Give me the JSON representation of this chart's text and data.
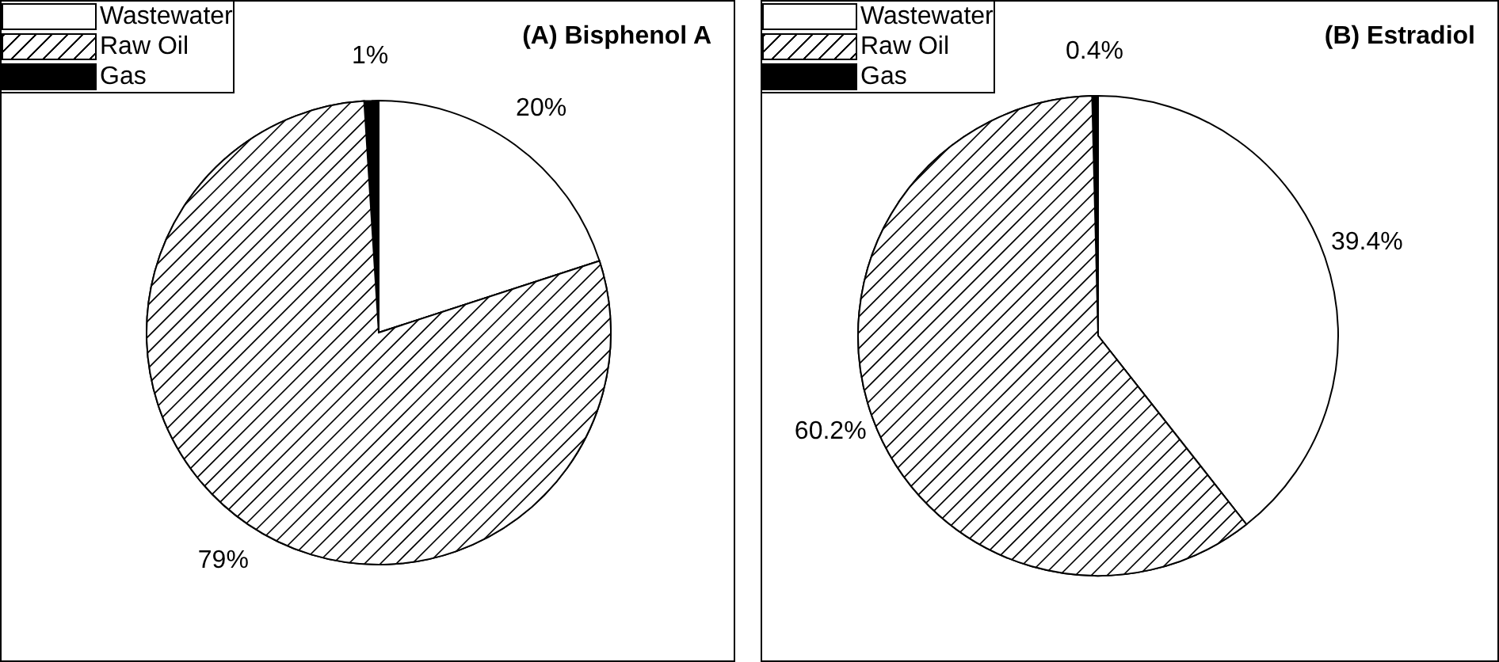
{
  "chart_data": [
    {
      "type": "pie",
      "title": "(A) Bisphenol A",
      "legend": "top left",
      "categories": [
        "Wastewater",
        "Raw Oil",
        "Gas"
      ],
      "values": [
        20,
        79,
        1
      ],
      "value_labels": [
        "20%",
        "79%",
        "1%"
      ],
      "colors": [
        "#ffffff",
        "#d0d0d0",
        "#000000"
      ]
    },
    {
      "type": "pie",
      "title": "(B) Estradiol",
      "legend": "top left",
      "categories": [
        "Wastewater",
        "Raw Oil",
        "Gas"
      ],
      "values": [
        39.4,
        60.2,
        0.4
      ],
      "value_labels": [
        "39.4%",
        "60.2%",
        "0.4%"
      ],
      "colors": [
        "#ffffff",
        "#d0d0d0",
        "#000000"
      ]
    }
  ]
}
